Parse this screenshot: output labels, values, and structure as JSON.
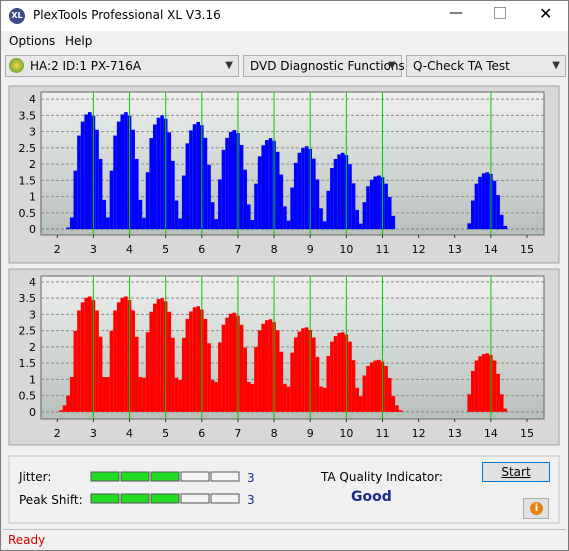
{
  "window": {
    "title": "PlexTools Professional XL V3.16"
  },
  "menu": [
    "Options",
    "Help"
  ],
  "toolbar": {
    "drive": "HA:2 ID:1  PX-716A",
    "function": "DVD Diagnostic Functions",
    "test": "Q-Check TA Test"
  },
  "charts": [
    {
      "type": "bar",
      "color": "#0000ff",
      "marker_color": "#00cc00",
      "grid": true,
      "xlim": [
        1.55,
        15.47
      ],
      "ylim": [
        -0.18,
        4.22
      ],
      "xticks": [
        2,
        3,
        4,
        5,
        6,
        7,
        8,
        9,
        10,
        11,
        12,
        13,
        14,
        15
      ],
      "yticks": [
        0,
        0.5,
        1,
        1.5,
        2,
        2.5,
        3,
        3.5,
        4
      ],
      "markers": [
        3,
        4,
        5,
        6,
        7,
        8,
        9,
        10,
        11,
        14
      ],
      "x": [
        2,
        2.1,
        2.2,
        2.3,
        2.4,
        2.5,
        2.6,
        2.7,
        2.8,
        2.9,
        3,
        3.1,
        3.2,
        3.3,
        3.4,
        3.5,
        3.6,
        3.7,
        3.8,
        3.9,
        4,
        4.1,
        4.2,
        4.3,
        4.4,
        4.5,
        4.6,
        4.7,
        4.8,
        4.9,
        5,
        5.1,
        5.2,
        5.3,
        5.4,
        5.5,
        5.6,
        5.7,
        5.8,
        5.9,
        6,
        6.1,
        6.2,
        6.3,
        6.4,
        6.5,
        6.6,
        6.7,
        6.8,
        6.9,
        7,
        7.1,
        7.2,
        7.3,
        7.4,
        7.5,
        7.6,
        7.7,
        7.8,
        7.9,
        8,
        8.1,
        8.2,
        8.3,
        8.4,
        8.5,
        8.6,
        8.7,
        8.8,
        8.9,
        9,
        9.1,
        9.2,
        9.3,
        9.4,
        9.5,
        9.6,
        9.7,
        9.8,
        9.9,
        10,
        10.1,
        10.2,
        10.3,
        10.4,
        10.5,
        10.6,
        10.7,
        10.8,
        10.9,
        11,
        11.1,
        11.2,
        11.3,
        11.4,
        11.5,
        11.6,
        11.7,
        11.8,
        11.9,
        12,
        12.1,
        12.2,
        12.3,
        12.4,
        12.5,
        12.6,
        12.7,
        12.8,
        12.9,
        13,
        13.1,
        13.2,
        13.3,
        13.4,
        13.5,
        13.6,
        13.7,
        13.8,
        13.9,
        14,
        14.1,
        14.2,
        14.3,
        14.4,
        14.5,
        14.6,
        14.7,
        14.8
      ],
      "values": [
        0,
        0,
        0,
        0.05,
        0.36,
        1.8,
        2.88,
        3.31,
        3.53,
        3.6,
        3.49,
        3.06,
        2.16,
        0.9,
        0.36,
        1.8,
        2.88,
        3.31,
        3.53,
        3.6,
        3.49,
        3.06,
        2.16,
        0.9,
        0.35,
        1.75,
        2.8,
        3.22,
        3.43,
        3.5,
        3.4,
        2.98,
        2.1,
        0.88,
        0.33,
        1.65,
        2.64,
        3.04,
        3.23,
        3.3,
        3.2,
        2.81,
        1.98,
        0.83,
        0.31,
        1.53,
        2.44,
        2.81,
        2.99,
        3.05,
        2.96,
        2.59,
        1.83,
        0.76,
        0.28,
        1.4,
        2.24,
        2.58,
        2.74,
        2.8,
        2.72,
        2.38,
        1.68,
        0.7,
        0.26,
        1.28,
        2.04,
        2.35,
        2.5,
        2.55,
        2.47,
        2.17,
        1.53,
        0.64,
        0.24,
        1.18,
        1.88,
        2.16,
        2.3,
        2.35,
        2.28,
        2,
        1.41,
        0.59,
        0.17,
        0.83,
        1.32,
        1.52,
        1.62,
        1.65,
        1.6,
        1.4,
        0.99,
        0.41,
        0,
        0,
        0,
        0,
        0,
        0,
        0,
        0,
        0,
        0,
        0,
        0,
        0,
        0,
        0,
        0,
        0,
        0,
        0,
        0,
        0.18,
        0.88,
        1.4,
        1.61,
        1.72,
        1.75,
        1.7,
        1.49,
        1.05,
        0.44,
        0.1,
        0,
        0,
        0,
        0
      ]
    },
    {
      "type": "bar",
      "color": "#ff0000",
      "marker_color": "#00cc00",
      "grid": true,
      "xlim": [
        1.55,
        15.47
      ],
      "ylim": [
        -0.22,
        4.18
      ],
      "xticks": [
        2,
        3,
        4,
        5,
        6,
        7,
        8,
        9,
        10,
        11,
        12,
        13,
        14,
        15
      ],
      "yticks": [
        0,
        0.5,
        1,
        1.5,
        2,
        2.5,
        3,
        3.5,
        4
      ],
      "markers": [
        3,
        4,
        5,
        6,
        7,
        8,
        9,
        10,
        11,
        14
      ],
      "x": [
        2,
        2.1,
        2.2,
        2.3,
        2.4,
        2.5,
        2.6,
        2.7,
        2.8,
        2.9,
        3,
        3.1,
        3.2,
        3.3,
        3.4,
        3.5,
        3.6,
        3.7,
        3.8,
        3.9,
        4,
        4.1,
        4.2,
        4.3,
        4.4,
        4.5,
        4.6,
        4.7,
        4.8,
        4.9,
        5,
        5.1,
        5.2,
        5.3,
        5.4,
        5.5,
        5.6,
        5.7,
        5.8,
        5.9,
        6,
        6.1,
        6.2,
        6.3,
        6.4,
        6.5,
        6.6,
        6.7,
        6.8,
        6.9,
        7,
        7.1,
        7.2,
        7.3,
        7.4,
        7.5,
        7.6,
        7.7,
        7.8,
        7.9,
        8,
        8.1,
        8.2,
        8.3,
        8.4,
        8.5,
        8.6,
        8.7,
        8.8,
        8.9,
        9,
        9.1,
        9.2,
        9.3,
        9.4,
        9.5,
        9.6,
        9.7,
        9.8,
        9.9,
        10,
        10.1,
        10.2,
        10.3,
        10.4,
        10.5,
        10.6,
        10.7,
        10.8,
        10.9,
        11,
        11.1,
        11.2,
        11.3,
        11.4,
        11.5,
        11.6,
        11.7,
        11.8,
        11.9,
        12,
        12.1,
        12.2,
        12.3,
        12.4,
        12.5,
        12.6,
        12.7,
        12.8,
        12.9,
        13,
        13.1,
        13.2,
        13.3,
        13.4,
        13.5,
        13.6,
        13.7,
        13.8,
        13.9,
        14,
        14.1,
        14.2,
        14.3,
        14.4,
        14.5,
        14.6,
        14.7,
        14.8
      ],
      "values": [
        0,
        0.05,
        0.2,
        0.5,
        1.07,
        2.49,
        3.12,
        3.37,
        3.51,
        3.55,
        3.44,
        3.12,
        2.31,
        1.07,
        1.07,
        2.49,
        3.12,
        3.37,
        3.51,
        3.55,
        3.44,
        3.12,
        2.31,
        1.07,
        1.05,
        2.45,
        3.08,
        3.33,
        3.47,
        3.5,
        3.4,
        3.08,
        2.28,
        1.05,
        0.98,
        2.28,
        2.86,
        3.09,
        3.22,
        3.25,
        3.15,
        2.86,
        2.11,
        0.98,
        0.92,
        2.14,
        2.68,
        2.9,
        3.02,
        3.05,
        2.96,
        2.68,
        1.98,
        0.92,
        0.86,
        2,
        2.51,
        2.71,
        2.82,
        2.85,
        2.76,
        2.51,
        1.85,
        0.86,
        0.78,
        1.82,
        2.29,
        2.47,
        2.57,
        2.6,
        2.52,
        2.29,
        1.69,
        0.78,
        0.74,
        1.72,
        2.16,
        2.33,
        2.43,
        2.45,
        2.38,
        2.16,
        1.59,
        0.74,
        0.48,
        1.12,
        1.41,
        1.52,
        1.58,
        1.6,
        1.55,
        1.41,
        1.04,
        0.48,
        0.2,
        0.05,
        0,
        0,
        0,
        0,
        0,
        0,
        0,
        0,
        0,
        0,
        0,
        0,
        0,
        0,
        0,
        0,
        0,
        0,
        0.54,
        1.26,
        1.58,
        1.71,
        1.78,
        1.8,
        1.75,
        1.58,
        1.17,
        0.54,
        0.1,
        0,
        0,
        0,
        0
      ]
    }
  ],
  "results": {
    "jitter": {
      "label": "Jitter:",
      "value": 3
    },
    "peak_shift": {
      "label": "Peak Shift:",
      "value": 3
    },
    "ta_label": "TA Quality Indicator:",
    "ta_value": "Good",
    "start": "Start"
  },
  "status": "Ready"
}
